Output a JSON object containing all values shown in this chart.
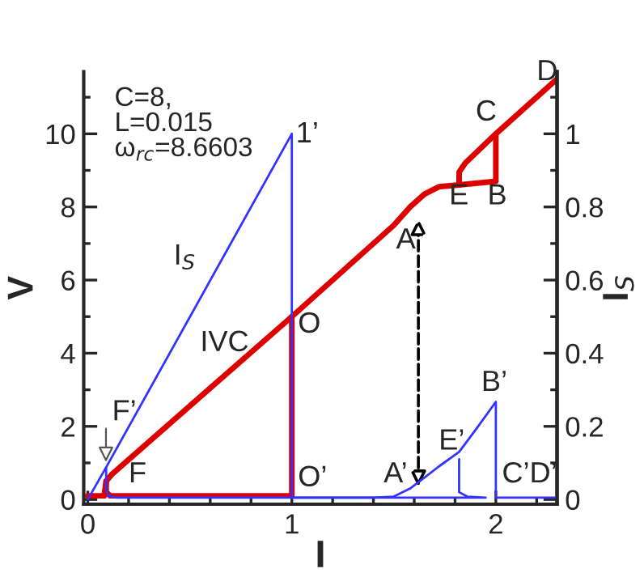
{
  "chart_data": {
    "type": "line",
    "xlabel": "I",
    "ylabel": "V",
    "y2label": "I$_{S}$",
    "xlim": [
      -0.02,
      2.3
    ],
    "ylim": [
      -0.13,
      11.7
    ],
    "y2lim": [
      -0.013,
      1.17
    ],
    "xticks": [
      0,
      {
        "value": 0.2,
        "label": null
      },
      {
        "value": 0.4,
        "label": null
      },
      {
        "value": 0.6,
        "label": null
      },
      {
        "value": 0.8,
        "label": null
      },
      1,
      {
        "value": 1.2,
        "label": null
      },
      {
        "value": 1.4,
        "label": null
      },
      {
        "value": 1.6,
        "label": null
      },
      {
        "value": 1.8,
        "label": null
      },
      2,
      {
        "value": 2.2,
        "label": null
      }
    ],
    "yticks": [
      0,
      {
        "value": 1,
        "label": null
      },
      2,
      {
        "value": 3,
        "label": null
      },
      4,
      {
        "value": 5,
        "label": null
      },
      6,
      {
        "value": 7,
        "label": null
      },
      8,
      {
        "value": 9,
        "label": null
      },
      10,
      {
        "value": 11,
        "label": null
      }
    ],
    "y2ticks": [
      0,
      {
        "value": 0.1,
        "label": null
      },
      0.2,
      {
        "value": 0.3,
        "label": null
      },
      0.4,
      {
        "value": 0.5,
        "label": null
      },
      0.6,
      {
        "value": 0.7,
        "label": null
      },
      0.8,
      {
        "value": 0.9,
        "label": null
      },
      1,
      {
        "value": 1.1,
        "label": null
      }
    ],
    "series": [
      {
        "color": "#dd0000",
        "x": [
          0,
          0.08,
          0.09,
          0.12,
          1,
          1.5,
          1.58,
          1.65,
          1.72,
          1.82,
          2.0,
          2.0,
          2.3
        ],
        "values": [
          0.1,
          0.1,
          0.5,
          0.7,
          5,
          7.5,
          8.0,
          8.35,
          8.55,
          8.6,
          8.7,
          10,
          11.5
        ]
      },
      {
        "color": "#dd0000",
        "x": [
          1,
          1,
          0.11,
          0.09,
          0.09
        ],
        "values": [
          5,
          0.1,
          0.1,
          0.2,
          0.5
        ]
      },
      {
        "color": "#dd0000",
        "x": [
          1.82,
          1.82,
          1.85,
          2.0
        ],
        "values": [
          8.6,
          8.95,
          9.2,
          10
        ]
      },
      {
        "color": "#3333ff",
        "axis": "y2",
        "x": [
          0,
          0.09,
          1,
          1,
          1.4,
          1.5,
          1.58,
          1.65,
          1.72,
          1.82,
          1.9,
          2.0,
          2.0,
          2.3
        ],
        "values": [
          0,
          0.088,
          1.0,
          0.005,
          0.005,
          0.008,
          0.03,
          0.06,
          0.09,
          0.13,
          0.19,
          0.267,
          0.005,
          0.005
        ]
      },
      {
        "color": "#3333ff",
        "axis": "y2",
        "x": [
          1.82,
          1.82,
          1.86,
          1.95,
          0.14,
          0.1,
          0.09,
          0.09
        ],
        "values": [
          0.11,
          0.02,
          0.008,
          0.005,
          0.005,
          0.01,
          0.03,
          0.088
        ]
      }
    ],
    "annotations": [
      "C=8,\nL=0.015\nω$_{rc}$=8.6603",
      "I$_{S}$",
      "IVC",
      {
        "text": "1’",
        "x": 1.02,
        "y": 9.6
      },
      {
        "text": "O",
        "x": 1.03,
        "y": 4.4
      },
      {
        "text": "O’",
        "x": 1.03,
        "y": 0.2
      },
      {
        "text": "F",
        "x": 0.2,
        "y": 0.3
      },
      "F’",
      "A",
      {
        "text": "A’",
        "x": 1.45,
        "y": 0.3
      },
      "E",
      "B",
      "C",
      {
        "text": "D",
        "x": 2.2,
        "y": 11.3
      },
      {
        "text": "E’",
        "x": 1.72,
        "y": 1.2
      },
      "B’",
      {
        "text": "C’D’",
        "x": 2.03,
        "y": 0.3
      }
    ]
  }
}
